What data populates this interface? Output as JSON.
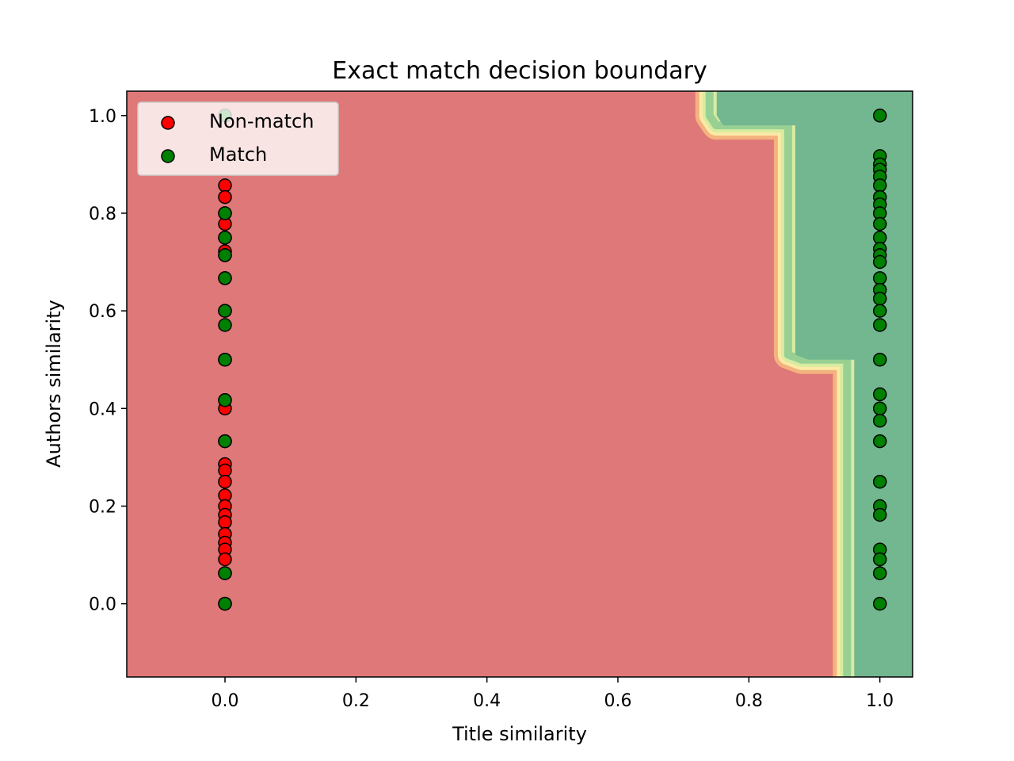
{
  "chart_data": {
    "type": "scatter",
    "title": "Exact match decision boundary",
    "xlabel": "Title similarity",
    "ylabel": "Authors similarity",
    "xlim": [
      -0.15,
      1.05
    ],
    "ylim": [
      -0.15,
      1.05
    ],
    "xticks": [
      "0.0",
      "0.2",
      "0.4",
      "0.6",
      "0.8",
      "1.0"
    ],
    "yticks": [
      "0.0",
      "0.2",
      "0.4",
      "0.6",
      "0.8",
      "1.0"
    ],
    "legend_position": "top-left",
    "decision_regions": {
      "non_match_color": "#de7879",
      "match_color": "#72b790",
      "boundary_colors": [
        "#f4b27e",
        "#fde9a6",
        "#d7eca1",
        "#98d093"
      ],
      "boundary": [
        [
          0.74,
          1.05
        ],
        [
          0.74,
          1.0
        ],
        [
          0.75,
          0.98
        ],
        [
          0.86,
          0.98
        ],
        [
          0.86,
          0.51
        ],
        [
          0.88,
          0.5
        ],
        [
          0.95,
          0.5
        ],
        [
          0.95,
          -0.15
        ]
      ]
    },
    "series": [
      {
        "name": "Non-match",
        "color": "#ff0000",
        "points": [
          [
            0,
            0.857
          ],
          [
            0,
            0.833
          ],
          [
            0,
            0.8
          ],
          [
            0,
            0.778
          ],
          [
            0,
            0.75
          ],
          [
            0,
            0.722
          ],
          [
            0,
            0.714
          ],
          [
            0,
            0.667
          ],
          [
            0,
            0.6
          ],
          [
            0,
            0.5
          ],
          [
            0,
            0.417
          ],
          [
            0,
            0.4
          ],
          [
            0,
            0.333
          ],
          [
            0,
            0.286
          ],
          [
            0,
            0.273
          ],
          [
            0,
            0.25
          ],
          [
            0,
            0.222
          ],
          [
            0,
            0.2
          ],
          [
            0,
            0.182
          ],
          [
            0,
            0.167
          ],
          [
            0,
            0.143
          ],
          [
            0,
            0.125
          ],
          [
            0,
            0.111
          ],
          [
            0,
            0.091
          ],
          [
            0,
            0.0625
          ],
          [
            0,
            0.0
          ]
        ]
      },
      {
        "name": "Match",
        "color": "#008000",
        "points": [
          [
            0,
            1.0
          ],
          [
            0,
            0.8
          ],
          [
            0,
            0.75
          ],
          [
            0,
            0.714
          ],
          [
            0,
            0.667
          ],
          [
            0,
            0.6
          ],
          [
            0,
            0.571
          ],
          [
            0,
            0.5
          ],
          [
            0,
            0.417
          ],
          [
            0,
            0.333
          ],
          [
            0,
            0.0625
          ],
          [
            0,
            0.0
          ],
          [
            1,
            1.0
          ],
          [
            1,
            0.917
          ],
          [
            1,
            0.9
          ],
          [
            1,
            0.889
          ],
          [
            1,
            0.875
          ],
          [
            1,
            0.857
          ],
          [
            1,
            0.833
          ],
          [
            1,
            0.818
          ],
          [
            1,
            0.8
          ],
          [
            1,
            0.778
          ],
          [
            1,
            0.75
          ],
          [
            1,
            0.727
          ],
          [
            1,
            0.714
          ],
          [
            1,
            0.7
          ],
          [
            1,
            0.667
          ],
          [
            1,
            0.643
          ],
          [
            1,
            0.625
          ],
          [
            1,
            0.6
          ],
          [
            1,
            0.571
          ],
          [
            1,
            0.5
          ],
          [
            1,
            0.429
          ],
          [
            1,
            0.4
          ],
          [
            1,
            0.375
          ],
          [
            1,
            0.333
          ],
          [
            1,
            0.25
          ],
          [
            1,
            0.2
          ],
          [
            1,
            0.182
          ],
          [
            1,
            0.111
          ],
          [
            1,
            0.091
          ],
          [
            1,
            0.0625
          ],
          [
            1,
            0.0
          ]
        ]
      }
    ]
  }
}
